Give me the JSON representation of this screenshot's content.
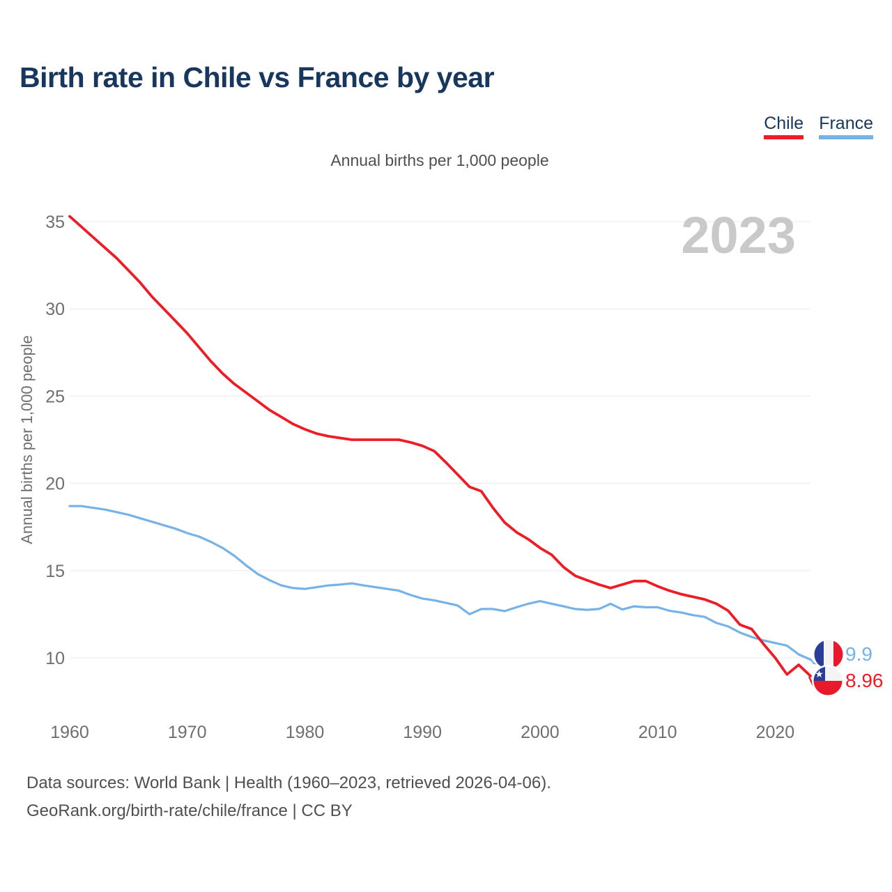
{
  "title": "Birth rate in Chile vs France by year",
  "subtitle": "Annual births per 1,000 people",
  "watermark": "2023",
  "legend": [
    {
      "label": "Chile",
      "color": "#ee1c25"
    },
    {
      "label": "France",
      "color": "#74b2e8"
    }
  ],
  "y_axis": {
    "title": "Annual births per 1,000 people",
    "ticks": [
      35,
      30,
      25,
      20,
      15,
      10
    ]
  },
  "x_axis": {
    "ticks": [
      1960,
      1970,
      1980,
      1990,
      2000,
      2010,
      2020
    ]
  },
  "end_labels": [
    {
      "series": "France",
      "value": "9.9",
      "flag": "france-flag",
      "color": "#74b2e8"
    },
    {
      "series": "Chile",
      "value": "8.96",
      "flag": "chile-flag",
      "color": "#ee1c25"
    }
  ],
  "footer": {
    "line1": "Data sources: World Bank | Health (1960–2023, retrieved 2026-04-06).",
    "line2": "GeoRank.org/birth-rate/chile/france | CC BY"
  },
  "chart_data": {
    "type": "line",
    "xlabel": "year",
    "ylabel": "Annual births per 1,000 people",
    "xlim": [
      1960,
      2023
    ],
    "ylim": [
      10,
      35
    ],
    "grid": "horizontal",
    "legend_position": "top-right",
    "x_start": 1960,
    "x_end": 2023,
    "series": [
      {
        "name": "Chile",
        "color": "#ee1c25",
        "end_value": 8.96,
        "values": [
          35.3,
          34.7,
          34.1,
          33.5,
          32.9,
          32.2,
          31.5,
          30.7,
          30.0,
          29.3,
          28.6,
          27.8,
          27.0,
          26.3,
          25.7,
          25.2,
          24.7,
          24.2,
          23.8,
          23.4,
          23.1,
          22.85,
          22.7,
          22.6,
          22.5,
          22.5,
          22.5,
          22.5,
          22.5,
          22.35,
          22.15,
          21.85,
          21.2,
          20.5,
          19.8,
          19.55,
          18.6,
          17.75,
          17.2,
          16.8,
          16.3,
          15.9,
          15.2,
          14.7,
          14.45,
          14.2,
          14.0,
          14.2,
          14.4,
          14.4,
          14.1,
          13.85,
          13.65,
          13.5,
          13.35,
          13.1,
          12.7,
          11.9,
          11.65,
          10.8,
          10.0,
          9.05,
          9.6,
          8.96
        ]
      },
      {
        "name": "France",
        "color": "#74b2e8",
        "end_value": 9.9,
        "values": [
          18.7,
          18.7,
          18.6,
          18.5,
          18.35,
          18.2,
          18.0,
          17.8,
          17.6,
          17.4,
          17.15,
          16.95,
          16.65,
          16.3,
          15.85,
          15.3,
          14.8,
          14.45,
          14.15,
          14.0,
          13.95,
          14.05,
          14.15,
          14.2,
          14.27,
          14.15,
          14.05,
          13.95,
          13.85,
          13.6,
          13.4,
          13.3,
          13.15,
          13.0,
          12.5,
          12.8,
          12.8,
          12.68,
          12.9,
          13.1,
          13.25,
          13.1,
          12.95,
          12.8,
          12.75,
          12.8,
          13.1,
          12.77,
          12.95,
          12.9,
          12.9,
          12.7,
          12.6,
          12.45,
          12.35,
          12.0,
          11.8,
          11.45,
          11.2,
          11.0,
          10.85,
          10.7,
          10.2,
          9.9
        ]
      }
    ]
  }
}
